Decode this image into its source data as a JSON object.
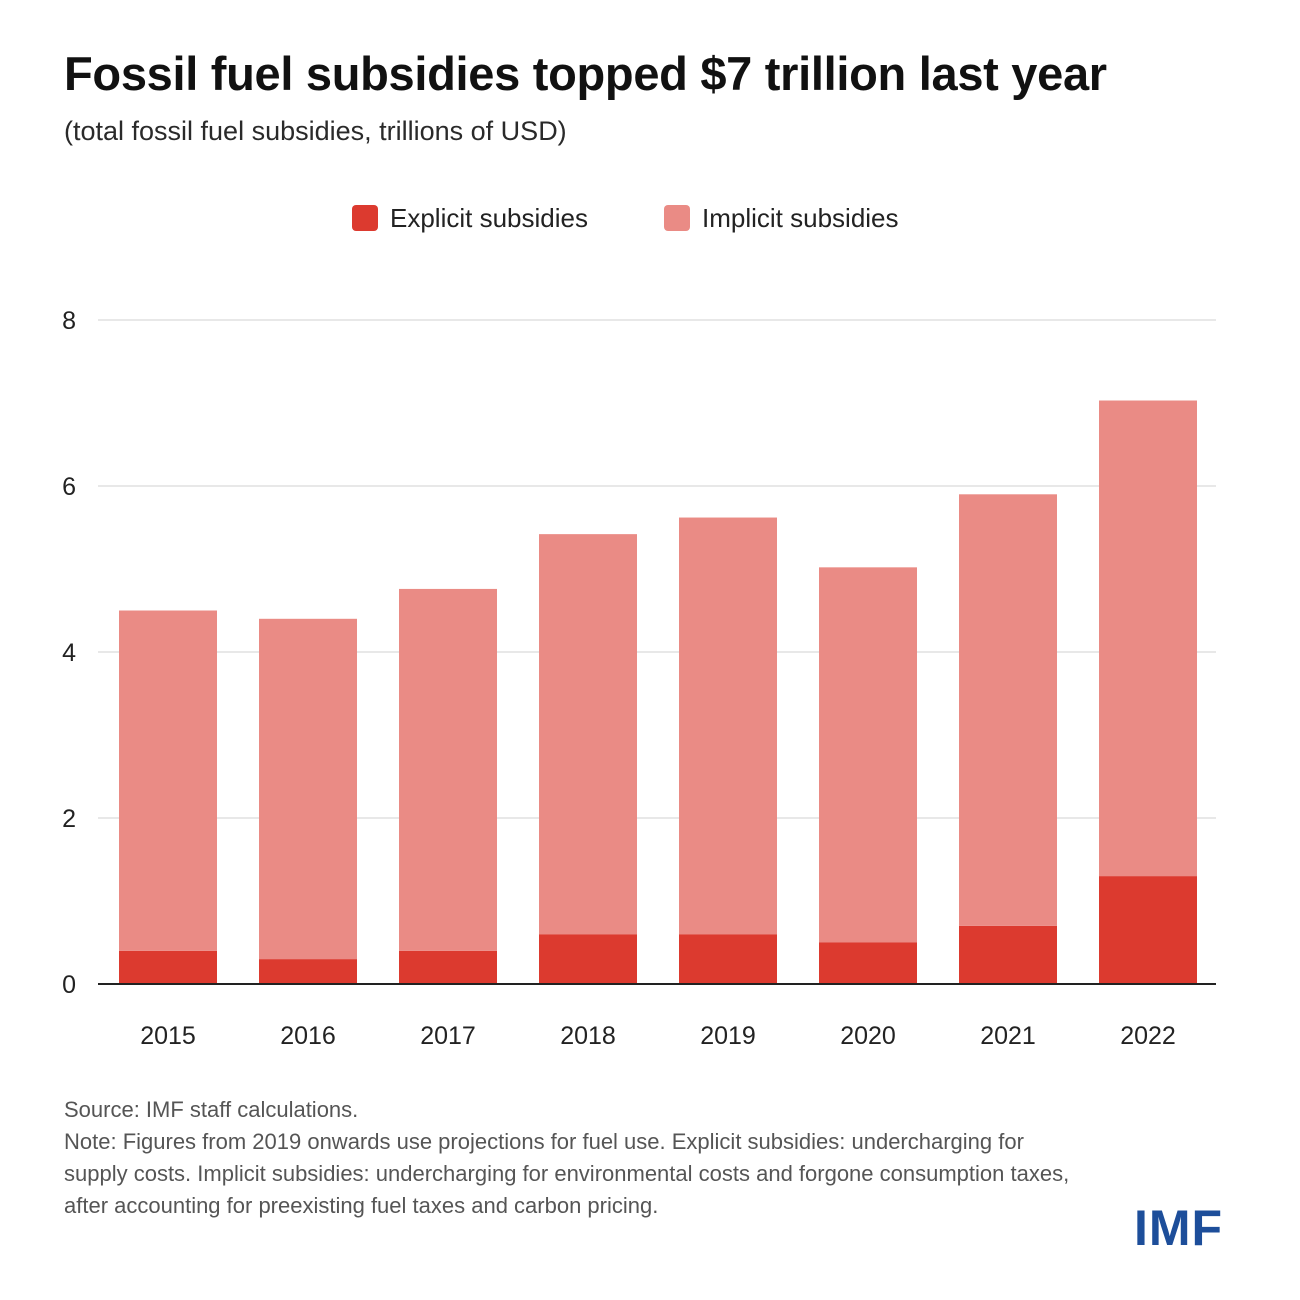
{
  "title": "Fossil fuel subsidies topped $7 trillion last year",
  "subtitle": "(total fossil fuel subsidies, trillions of USD)",
  "colors": {
    "explicit": "#dc3a2f",
    "implicit": "#ea8b85",
    "grid": "#e8e8e8",
    "axis": "#222222",
    "logo": "#1d4e9a"
  },
  "chart_data": {
    "type": "bar",
    "stacked": true,
    "categories": [
      "2015",
      "2016",
      "2017",
      "2018",
      "2019",
      "2020",
      "2021",
      "2022"
    ],
    "series": [
      {
        "name": "Explicit subsidies",
        "values": [
          0.4,
          0.3,
          0.4,
          0.6,
          0.6,
          0.5,
          0.7,
          1.3
        ]
      },
      {
        "name": "Implicit subsidies",
        "values": [
          4.1,
          4.1,
          4.36,
          4.82,
          5.02,
          4.52,
          5.2,
          5.73
        ]
      }
    ],
    "ylim": [
      0,
      8
    ],
    "yticks": [
      0,
      2,
      4,
      6,
      8
    ],
    "grid": true,
    "legend_position": "top-center"
  },
  "source": "Source: IMF staff calculations.",
  "note": "Note: Figures from 2019 onwards use projections for fuel use. Explicit subsidies: undercharging for supply costs. Implicit subsidies: undercharging for environmental costs and forgone consumption taxes, after accounting for preexisting fuel taxes and carbon pricing.",
  "logo": "IMF"
}
